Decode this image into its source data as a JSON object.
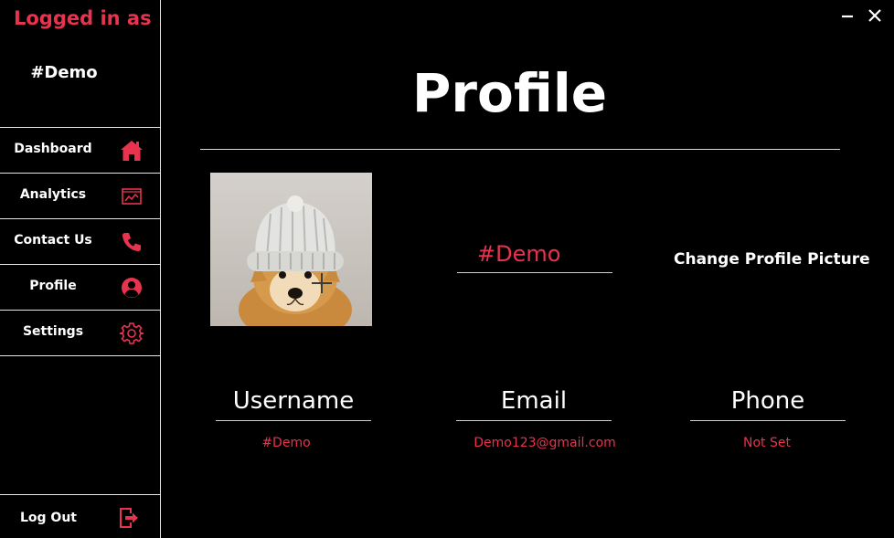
{
  "sidebar": {
    "logged_label": "Logged in as",
    "user": "#Demo",
    "items": [
      {
        "label": "Dashboard",
        "icon": "home-icon"
      },
      {
        "label": "Analytics",
        "icon": "chart-icon"
      },
      {
        "label": "Contact Us",
        "icon": "phone-icon"
      },
      {
        "label": "Profile",
        "icon": "user-icon"
      },
      {
        "label": "Settings",
        "icon": "gear-icon"
      }
    ],
    "logout": {
      "label": "Log Out",
      "icon": "logout-icon"
    }
  },
  "window": {
    "minimize_icon": "minimize-icon",
    "close_icon": "close-icon"
  },
  "main": {
    "title": "Profile",
    "display_name": "#Demo",
    "change_picture_label": "Change Profile Picture",
    "fields": [
      {
        "label": "Username",
        "value": "#Demo"
      },
      {
        "label": "Email",
        "value": "Demo123@gmail.com"
      },
      {
        "label": "Phone",
        "value": "Not Set"
      }
    ]
  },
  "colors": {
    "accent": "#e8334f",
    "background": "#000000",
    "text": "#ffffff",
    "divider": "#e6e6e6"
  }
}
